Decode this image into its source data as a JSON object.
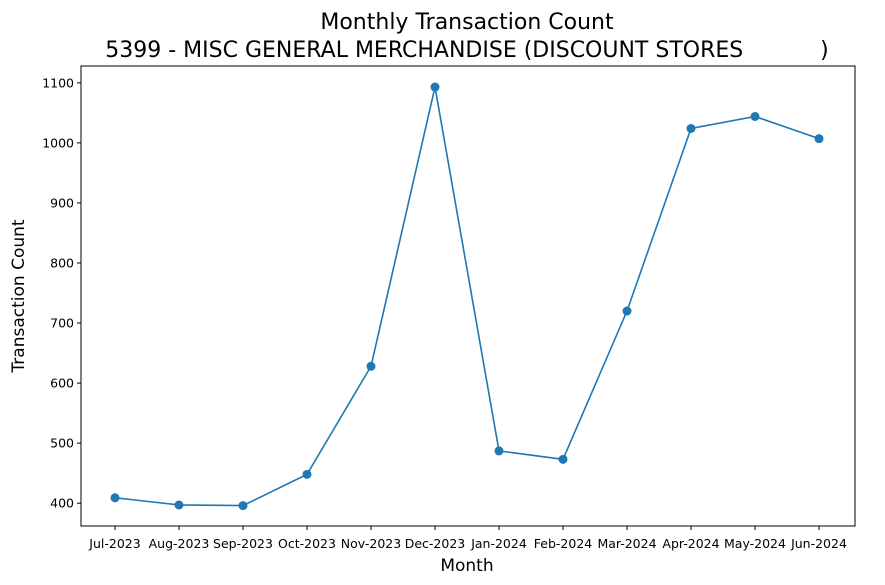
{
  "chart_data": {
    "type": "line",
    "title": "Monthly Transaction Count",
    "subtitle": "5399 - MISC GENERAL MERCHANDISE (DISCOUNT STORES           )",
    "xlabel": "Month",
    "ylabel": "Transaction Count",
    "categories": [
      "Jul-2023",
      "Aug-2023",
      "Sep-2023",
      "Oct-2023",
      "Nov-2023",
      "Dec-2023",
      "Jan-2024",
      "Feb-2024",
      "Mar-2024",
      "Apr-2024",
      "May-2024",
      "Jun-2024"
    ],
    "values": [
      409,
      397,
      396,
      448,
      628,
      1093,
      487,
      473,
      720,
      1024,
      1044,
      1007
    ],
    "ylim": [
      362,
      1128
    ],
    "yticks": [
      400,
      500,
      600,
      700,
      800,
      900,
      1000,
      1100
    ],
    "marker": "circle",
    "grid": false,
    "color": "#1f77b4"
  }
}
